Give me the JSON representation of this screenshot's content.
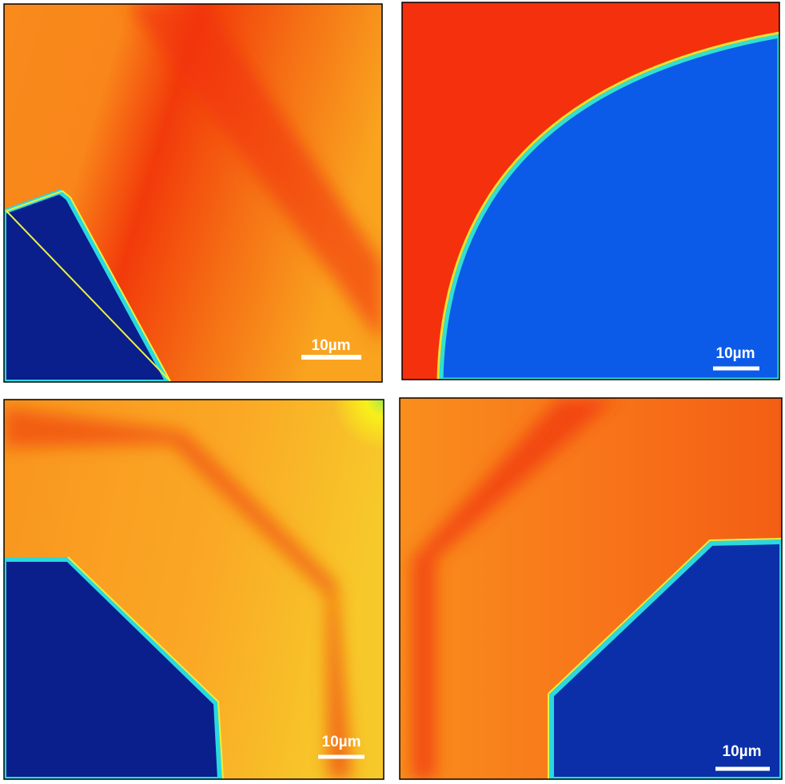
{
  "panels": [
    {
      "scale_bar_label": "10µm"
    },
    {
      "scale_bar_label": "10µm"
    },
    {
      "scale_bar_label": "10µm"
    },
    {
      "scale_bar_label": "10µm"
    }
  ]
}
